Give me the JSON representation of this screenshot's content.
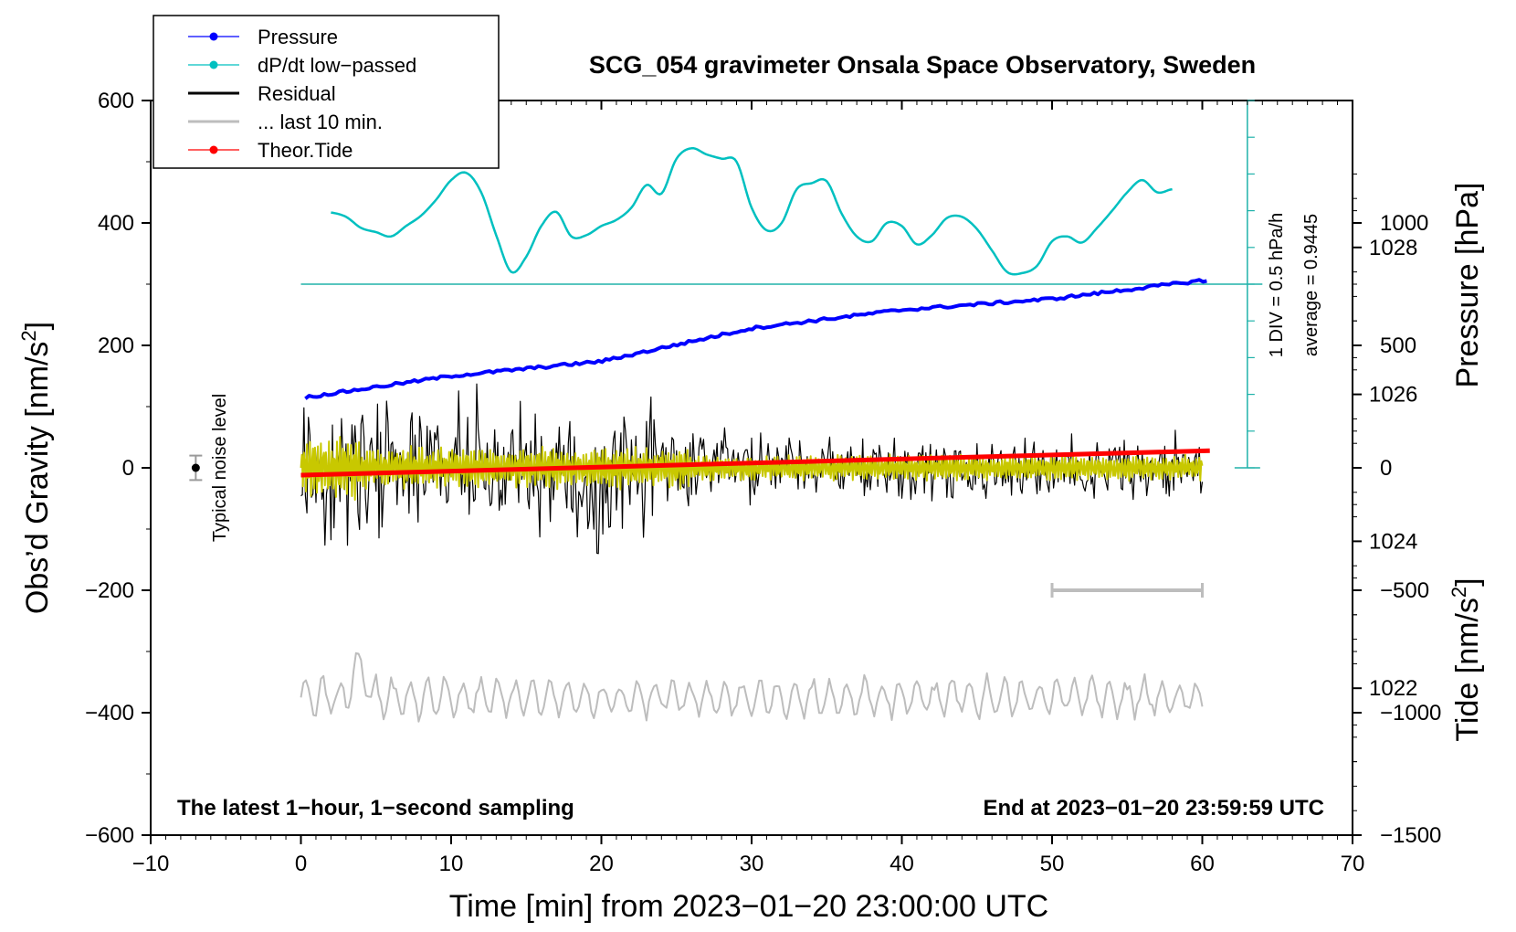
{
  "chart_data": {
    "type": "line",
    "title": "SCG_054 gravimeter Onsala Space Observatory, Sweden",
    "xlabel": "Time [min] from 2023−01−20 23:00:00 UTC",
    "ylabel": "Obs’d Gravity [nm/s",
    "ylabel_sup": "2",
    "ylabel_close": "]",
    "ylabel_right_top": "Pressure [hPa]",
    "ylabel_right_bottom": "Tide [nm/s",
    "ylabel_right_bottom_sup": "2",
    "ylabel_right_bottom_close": "]",
    "xlim": [
      -10,
      70
    ],
    "ylim": [
      -600,
      600
    ],
    "pressure_ylim": [
      1020,
      1030
    ],
    "tide_ylim": [
      -1500,
      1500
    ],
    "x_ticks": [
      -10,
      0,
      10,
      20,
      30,
      40,
      50,
      60,
      70
    ],
    "x_tick_labels": [
      "−10",
      "0",
      "10",
      "20",
      "30",
      "40",
      "50",
      "60",
      "70"
    ],
    "y_ticks": [
      600,
      400,
      200,
      0,
      -200,
      -400,
      -600
    ],
    "y_tick_labels": [
      "600",
      "400",
      "200",
      "0",
      "−200",
      "−400",
      "−600"
    ],
    "pressure_ticks": [
      1028,
      1026,
      1024,
      1022
    ],
    "pressure_tick_labels": [
      "1028",
      "1026",
      "1024",
      "1022"
    ],
    "tide_ticks": [
      1000,
      500,
      0,
      -500,
      -1000,
      -1500
    ],
    "tide_tick_labels": [
      "1000",
      "500",
      "0",
      "−500",
      "−1000",
      "−1500"
    ],
    "legend": [
      {
        "label": "Pressure",
        "color": "#0000ff",
        "marker": true
      },
      {
        "label": "dP/dt low−passed",
        "color": "#00c0c0",
        "marker": true
      },
      {
        "label": "Residual",
        "color": "#000000",
        "marker": false
      },
      {
        "label": "... last 10 min.",
        "color": "#bdbdbd",
        "marker": false
      },
      {
        "label": "Theor.Tide",
        "color": "#ff0000",
        "marker": true
      }
    ],
    "footer_left": "The latest 1−hour, 1−second sampling",
    "footer_right": "End at 2023−01−20 23:59:59 UTC",
    "noise_label": "Typical noise level",
    "noise_bar": {
      "x": -7,
      "y": 0,
      "err": 20
    },
    "dpdt_scale_label": "1 DIV = 0.5 hPa/h",
    "dpdt_average_label": "average = 0.9445",
    "dpdt_zero_level": 300,
    "last10_bar": {
      "x_start": 50,
      "x_end": 60,
      "y": -200
    },
    "pressure": {
      "name": "Pressure",
      "color": "#0000ff",
      "x": [
        0,
        10,
        20,
        30,
        40,
        50,
        60
      ],
      "values": [
        1025.95,
        1026.25,
        1026.45,
        1026.9,
        1027.15,
        1027.3,
        1027.55
      ]
    },
    "dpdt": {
      "name": "dP/dt low−passed",
      "color": "#00c0c0",
      "x": [
        2,
        3,
        4,
        5,
        6,
        7,
        8,
        9,
        10,
        11,
        12,
        13,
        14,
        15,
        16,
        17,
        18,
        19,
        20,
        21,
        22,
        23,
        24,
        25,
        26,
        27,
        28,
        29,
        30,
        31,
        32,
        33,
        34,
        35,
        36,
        37,
        38,
        39,
        40,
        41,
        42,
        43,
        44,
        45,
        46,
        47,
        48,
        49,
        50,
        51,
        52,
        53,
        54,
        55,
        56,
        57,
        58
      ],
      "values": [
        417,
        410,
        392,
        385,
        378,
        395,
        412,
        438,
        470,
        482,
        450,
        380,
        320,
        345,
        395,
        418,
        378,
        380,
        395,
        405,
        425,
        462,
        448,
        505,
        522,
        512,
        505,
        500,
        425,
        388,
        400,
        455,
        465,
        468,
        415,
        378,
        370,
        400,
        395,
        365,
        380,
        408,
        410,
        390,
        355,
        320,
        318,
        330,
        370,
        378,
        368,
        392,
        420,
        450,
        470,
        450,
        455
      ]
    },
    "residual": {
      "name": "Residual",
      "color": "#000000",
      "x_range": [
        0,
        60
      ],
      "points": 600,
      "amplitude_envelope": [
        [
          0,
          150
        ],
        [
          2,
          200
        ],
        [
          4,
          170
        ],
        [
          8,
          110
        ],
        [
          12,
          110
        ],
        [
          14,
          120
        ],
        [
          18,
          120
        ],
        [
          20,
          150
        ],
        [
          24,
          110
        ],
        [
          26,
          90
        ],
        [
          30,
          70
        ],
        [
          40,
          60
        ],
        [
          50,
          60
        ],
        [
          60,
          50
        ]
      ]
    },
    "residual_filtered": {
      "name": "Residual (band-passed)",
      "color": "#c8c800",
      "x_range": [
        0,
        60
      ],
      "amplitude": 40
    },
    "last10": {
      "name": "... last 10 min.",
      "color": "#bdbdbd",
      "x_range": [
        0,
        60
      ],
      "offset": -375,
      "amplitude": 40
    },
    "tide": {
      "name": "Theor.Tide",
      "color": "#ff0000",
      "x": [
        0,
        60
      ],
      "values": [
        -30,
        70
      ]
    }
  }
}
